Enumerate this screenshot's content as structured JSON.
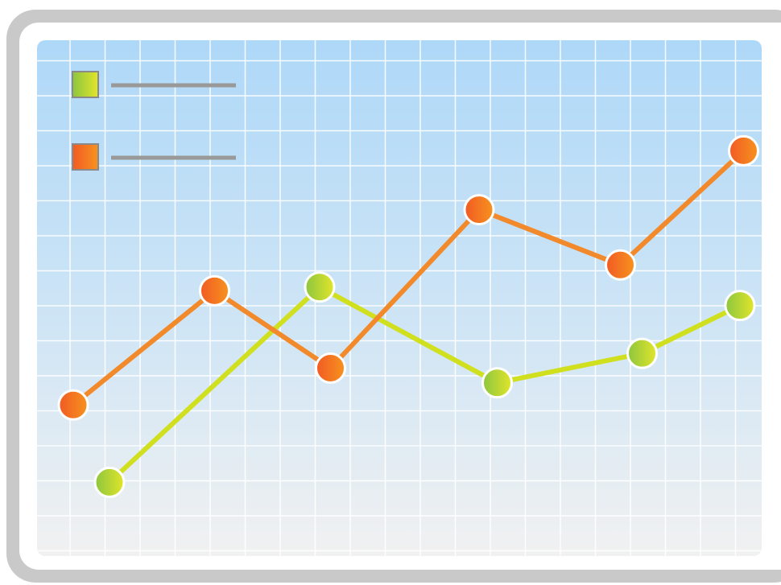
{
  "colors": {
    "frame": "#c9c9c9",
    "panel_top": "#aed8f8",
    "panel_bottom": "#f1f1f1",
    "grid": "#ffffff",
    "legend_line": "#999999",
    "series_green": "#d0df1e",
    "series_orange": "#f2892a"
  },
  "chart_data": {
    "type": "line",
    "title": "",
    "xlabel": "",
    "ylabel": "",
    "grid": true,
    "legend_placement": "top-left",
    "xlim": [
      0,
      20
    ],
    "ylim": [
      0,
      14
    ],
    "series": [
      {
        "color": "#d0df1e",
        "marker_icon": "green-circle-icon",
        "points": [
          [
            2,
            2
          ],
          [
            7.8,
            7.3
          ],
          [
            12.7,
            4.7
          ],
          [
            16.7,
            5.5
          ],
          [
            19.4,
            6.8
          ]
        ]
      },
      {
        "color": "#f2892a",
        "marker_icon": "orange-circle-icon",
        "points": [
          [
            1,
            4.1
          ],
          [
            4.9,
            7.2
          ],
          [
            8.1,
            5.1
          ],
          [
            12.2,
            9.4
          ],
          [
            16.1,
            7.9
          ],
          [
            19.5,
            11
          ]
        ]
      }
    ]
  }
}
